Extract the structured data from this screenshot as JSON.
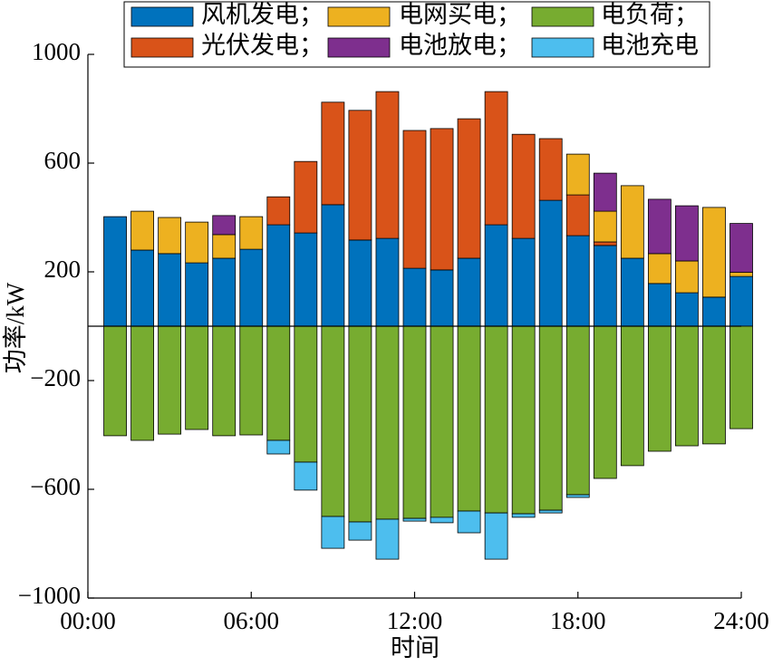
{
  "chart_data": {
    "type": "bar",
    "stacked": true,
    "title": "",
    "xlabel": "时间",
    "ylabel": "功率/kW",
    "grid": false,
    "legend_position": "top",
    "x": [
      1,
      2,
      3,
      4,
      5,
      6,
      7,
      8,
      9,
      10,
      11,
      12,
      13,
      14,
      15,
      16,
      17,
      18,
      19,
      20,
      21,
      22,
      23,
      24
    ],
    "xlim": [
      0,
      24
    ],
    "xticks": [
      0,
      6,
      12,
      18,
      24
    ],
    "xtick_labels": [
      "00:00",
      "06:00",
      "12:00",
      "18:00",
      "24:00"
    ],
    "ylim": [
      -1000,
      1000
    ],
    "yticks": [
      -1000,
      -600,
      -200,
      200,
      600,
      1000
    ],
    "ytick_labels": [
      "−1000",
      "−600",
      "−200",
      "200",
      "600",
      "1000"
    ],
    "series": [
      {
        "name": "风机发电；",
        "color": "#0072BD",
        "values": [
          403,
          280,
          267,
          233,
          250,
          283,
          373,
          343,
          447,
          317,
          323,
          213,
          207,
          250,
          373,
          323,
          463,
          333,
          297,
          250,
          157,
          123,
          107,
          183
        ]
      },
      {
        "name": "光伏发电；",
        "color": "#D95319",
        "values": [
          0,
          0,
          0,
          0,
          0,
          0,
          103,
          263,
          377,
          477,
          540,
          507,
          520,
          513,
          490,
          383,
          227,
          150,
          13,
          0,
          0,
          0,
          0,
          0
        ]
      },
      {
        "name": "电网买电；",
        "color": "#EDB120",
        "values": [
          0,
          143,
          133,
          150,
          87,
          120,
          0,
          0,
          0,
          0,
          0,
          0,
          0,
          0,
          0,
          0,
          0,
          150,
          113,
          267,
          110,
          117,
          330,
          15
        ]
      },
      {
        "name": "电池放电；",
        "color": "#7E2F8E",
        "values": [
          0,
          0,
          0,
          0,
          70,
          0,
          0,
          0,
          0,
          0,
          0,
          0,
          0,
          0,
          0,
          0,
          0,
          0,
          140,
          0,
          200,
          203,
          0,
          180
        ]
      },
      {
        "name": "电负荷；",
        "color": "#77AC30",
        "values": [
          -403,
          -420,
          -397,
          -380,
          -403,
          -400,
          -420,
          -500,
          -700,
          -720,
          -710,
          -707,
          -703,
          -680,
          -687,
          -690,
          -677,
          -620,
          -560,
          -513,
          -460,
          -440,
          -433,
          -377
        ]
      },
      {
        "name": "电池充电",
        "color": "#4DBEEE",
        "values": [
          0,
          0,
          0,
          0,
          0,
          0,
          -50,
          -103,
          -117,
          -67,
          -147,
          -10,
          -20,
          -80,
          -170,
          -13,
          -10,
          -10,
          0,
          0,
          0,
          0,
          0,
          0
        ]
      }
    ]
  }
}
